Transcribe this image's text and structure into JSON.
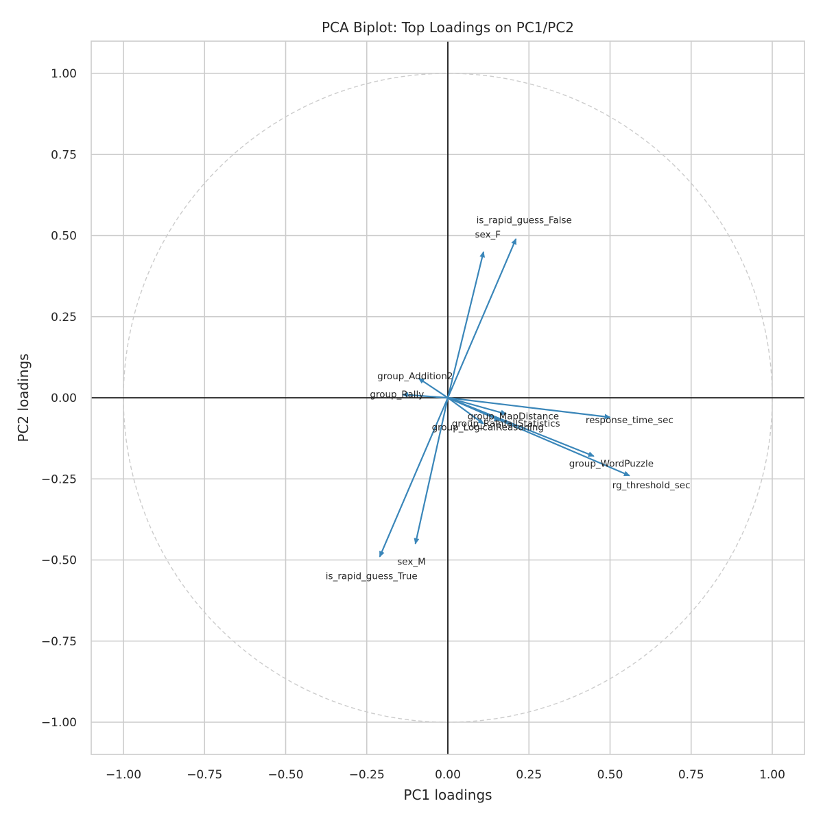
{
  "chart_data": {
    "type": "scatter",
    "subtype": "pca-biplot-loadings",
    "title": "PCA Biplot: Top Loadings on PC1/PC2",
    "xlabel": "PC1 loadings",
    "ylabel": "PC2 loadings",
    "xlim": [
      -1.1,
      1.1
    ],
    "ylim": [
      -1.1,
      1.1
    ],
    "xticks": [
      -1.0,
      -0.75,
      -0.5,
      -0.25,
      0.0,
      0.25,
      0.5,
      0.75,
      1.0
    ],
    "yticks": [
      -1.0,
      -0.75,
      -0.5,
      -0.25,
      0.0,
      0.25,
      0.5,
      0.75,
      1.0
    ],
    "xtick_labels": [
      "−1.00",
      "−0.75",
      "−0.50",
      "−0.25",
      "0.00",
      "0.25",
      "0.50",
      "0.75",
      "1.00"
    ],
    "ytick_labels": [
      "−1.00",
      "−0.75",
      "−0.50",
      "−0.25",
      "0.00",
      "0.25",
      "0.50",
      "0.75",
      "1.00"
    ],
    "grid": true,
    "unit_circle": true,
    "zero_lines": true,
    "arrow_color": "#3a86b9",
    "loadings": [
      {
        "label": "is_rapid_guess_False",
        "x": 0.21,
        "y": 0.49
      },
      {
        "label": "sex_F",
        "x": 0.11,
        "y": 0.45
      },
      {
        "label": "group_Addition2",
        "x": -0.09,
        "y": 0.06
      },
      {
        "label": "group_Rally",
        "x": -0.14,
        "y": 0.01
      },
      {
        "label": "response_time_sec",
        "x": 0.5,
        "y": -0.06
      },
      {
        "label": "group_MapDistance",
        "x": 0.18,
        "y": -0.05
      },
      {
        "label": "group_RainfallStatistics",
        "x": 0.16,
        "y": -0.07
      },
      {
        "label": "group_LogicalReasoning",
        "x": 0.11,
        "y": -0.08
      },
      {
        "label": "group_WordPuzzle",
        "x": 0.45,
        "y": -0.18
      },
      {
        "label": "rg_threshold_sec",
        "x": 0.56,
        "y": -0.24
      },
      {
        "label": "sex_M",
        "x": -0.1,
        "y": -0.45
      },
      {
        "label": "is_rapid_guess_True",
        "x": -0.21,
        "y": -0.49
      }
    ]
  }
}
